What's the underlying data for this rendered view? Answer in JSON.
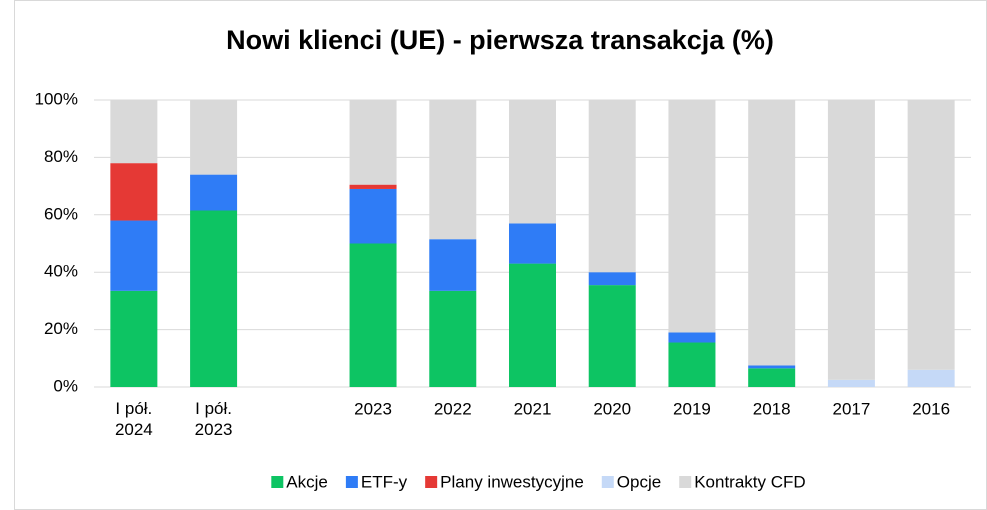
{
  "chart_data": {
    "type": "stacked_bar",
    "title": "Nowi klienci (UE) - pierwsza transakcja (%)",
    "categories": [
      "I pół.\n2024",
      "I pół.\n2023",
      null,
      "2023",
      "2022",
      "2021",
      "2020",
      "2019",
      "2018",
      "2017",
      "2016"
    ],
    "series": [
      {
        "name": "Akcje",
        "color": "#0dc463",
        "values": [
          33.5,
          61.5,
          null,
          50,
          33.5,
          43,
          35.5,
          15.5,
          6.5,
          0,
          0
        ]
      },
      {
        "name": "ETF-y",
        "color": "#2f7cf6",
        "values": [
          24.5,
          12.5,
          null,
          19,
          18,
          14,
          4.5,
          3.5,
          1,
          0,
          0
        ]
      },
      {
        "name": "Plany inwestycyjne",
        "color": "#e53935",
        "values": [
          20,
          0,
          null,
          1.5,
          0,
          0,
          0,
          0,
          0,
          0,
          0
        ]
      },
      {
        "name": "Opcje",
        "color": "#c5d9f7",
        "values": [
          0,
          0,
          null,
          0,
          0,
          0,
          0,
          0,
          0,
          2.5,
          6
        ]
      },
      {
        "name": "Kontrakty CFD",
        "color": "#d9d9d9",
        "values": [
          22,
          26,
          null,
          29.5,
          48.5,
          43,
          60,
          81,
          92.5,
          97.5,
          94
        ]
      }
    ],
    "ylim": [
      0,
      100
    ],
    "yticks": [
      {
        "value": 0,
        "label": "0%"
      },
      {
        "value": 20,
        "label": "20%"
      },
      {
        "value": 40,
        "label": "40%"
      },
      {
        "value": 60,
        "label": "60%"
      },
      {
        "value": 80,
        "label": "80%"
      },
      {
        "value": 100,
        "label": "100%"
      }
    ],
    "grid": true,
    "legend": "bottom"
  }
}
